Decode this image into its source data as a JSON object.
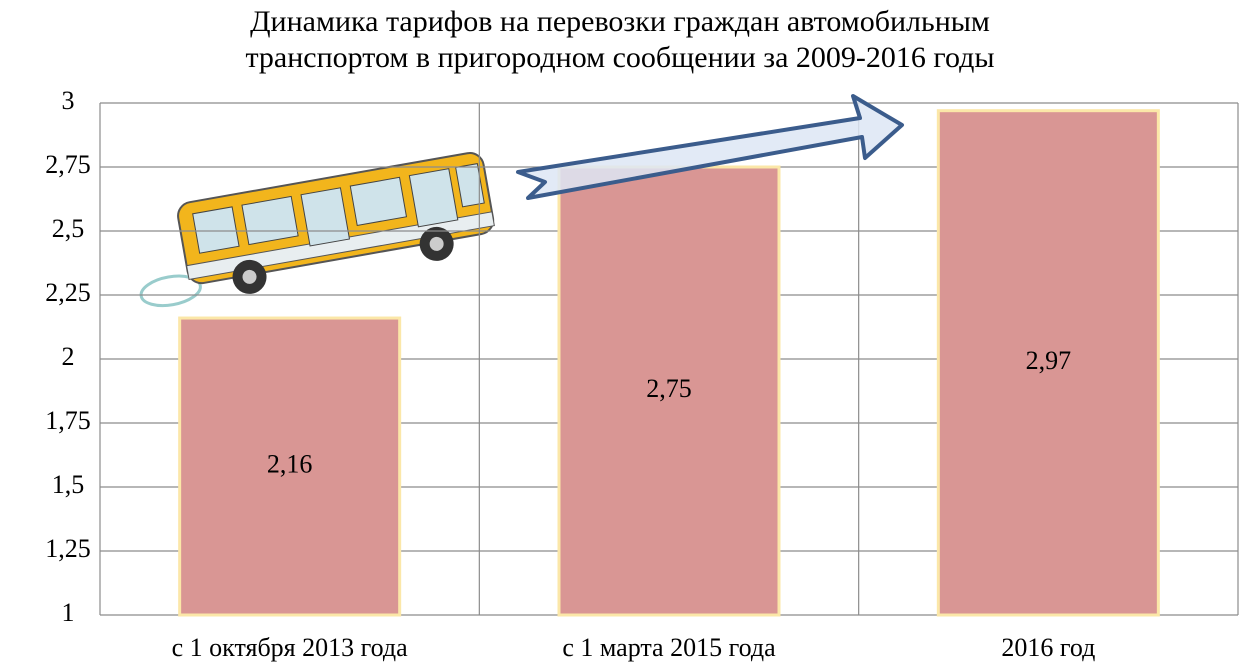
{
  "chart_data": {
    "type": "bar",
    "title": "Динамика тарифов на перевозки граждан автомобильным\nтранспортом в пригородном сообщении  за  2009-2016 годы",
    "categories": [
      "с 1 октября 2013  года",
      "с 1 марта 2015 года",
      "2016 год"
    ],
    "values": [
      2.16,
      2.75,
      2.97
    ],
    "value_labels": [
      "2,16",
      "2,75",
      "2,97"
    ],
    "color": "#d99694",
    "ylim": [
      1,
      3
    ],
    "yticks": [
      1,
      {
        "value": 1.25,
        "label": "1,25"
      },
      {
        "value": 1.5,
        "label": "1,5"
      },
      {
        "value": 1.75,
        "label": "1,75"
      },
      2,
      {
        "value": 2.25,
        "label": "2,25"
      },
      {
        "value": 2.5,
        "label": "2,5"
      },
      {
        "value": 2.75,
        "label": "2,75"
      },
      3
    ],
    "grid": true
  }
}
